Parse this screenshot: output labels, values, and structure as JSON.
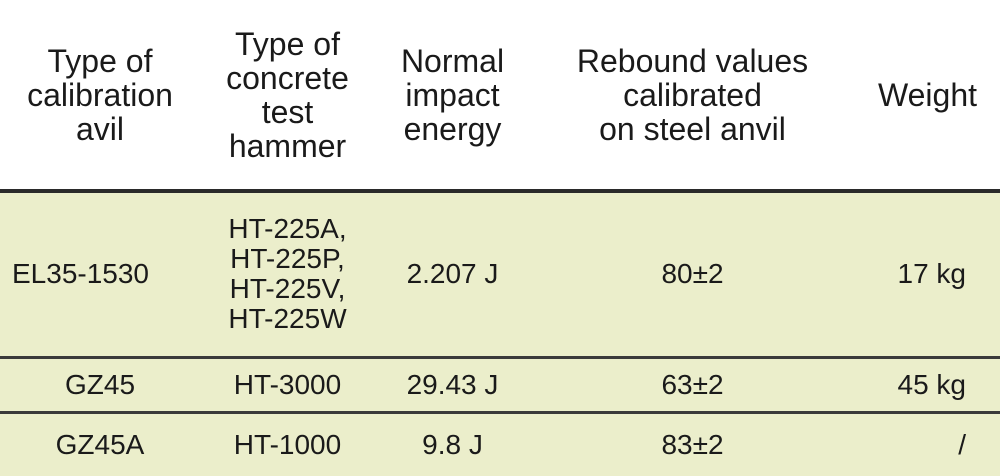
{
  "headers": [
    [
      "Type of",
      "calibration",
      "avil"
    ],
    [
      "Type of",
      "concrete",
      "test",
      "hammer"
    ],
    [
      "Normal",
      "impact",
      "energy"
    ],
    [
      "Rebound values",
      "calibrated",
      "on steel anvil"
    ],
    [
      "Weight"
    ]
  ],
  "rows": [
    {
      "anvil": "EL35-1530",
      "hammers": [
        "HT-225A,",
        "HT-225P,",
        "HT-225V,",
        "HT-225W"
      ],
      "energy": "2.207 J",
      "rebound": "80±2",
      "weight": "17 kg"
    },
    {
      "anvil": "GZ45",
      "hammers": [
        "HT-3000"
      ],
      "energy": "29.43 J",
      "rebound": "63±2",
      "weight": "45 kg"
    },
    {
      "anvil": "GZ45A",
      "hammers": [
        "HT-1000"
      ],
      "energy": "9.8 J",
      "rebound": "83±2",
      "weight": "/"
    }
  ],
  "colors": {
    "row_background": "#ebeecb",
    "header_background": "#ffffff",
    "rule": "#2a2a2a"
  }
}
